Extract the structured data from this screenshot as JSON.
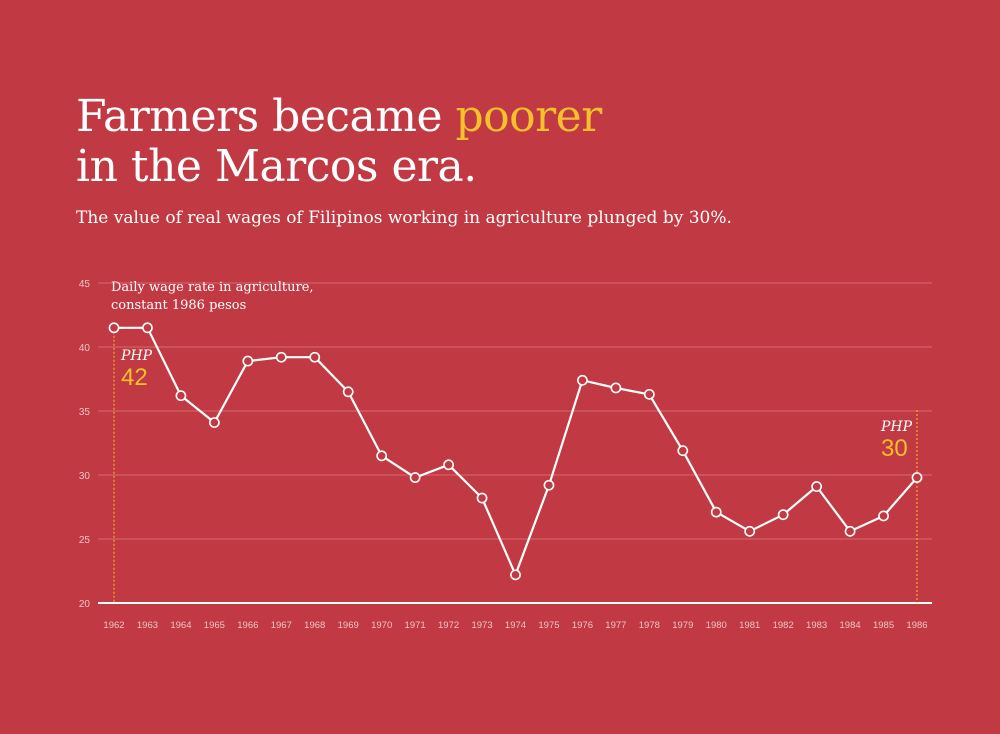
{
  "headline": {
    "line1_pre": "Farmers became ",
    "line1_highlight": "poorer",
    "line2": "in the Marcos era."
  },
  "subtitle": "The value of real wages of Filipinos working in agriculture plunged by 30%.",
  "colors": {
    "background": "#c13a43",
    "highlight": "#f5c02b",
    "line": "#ffffff",
    "grid": "#d66a71"
  },
  "chart_data": {
    "type": "line",
    "ylabel_line1": "Daily wage rate in agriculture,",
    "ylabel_line2": "constant 1986 pesos",
    "ylim": [
      20,
      45
    ],
    "yticks": [
      20,
      25,
      30,
      35,
      40,
      45
    ],
    "grid": true,
    "x": [
      "1962",
      "1963",
      "1964",
      "1965",
      "1966",
      "1967",
      "1968",
      "1969",
      "1970",
      "1971",
      "1972",
      "1973",
      "1974",
      "1975",
      "1976",
      "1977",
      "1978",
      "1979",
      "1980",
      "1981",
      "1982",
      "1983",
      "1984",
      "1985",
      "1986"
    ],
    "values": [
      41.5,
      41.5,
      36.2,
      34.1,
      38.9,
      39.2,
      39.2,
      36.5,
      31.5,
      29.8,
      30.8,
      28.2,
      22.2,
      29.2,
      37.4,
      36.8,
      36.3,
      31.9,
      27.1,
      25.6,
      26.9,
      29.1,
      25.6,
      26.8,
      29.8
    ],
    "annotations": [
      {
        "currency": "PHP",
        "value": "42",
        "year": "1962"
      },
      {
        "currency": "PHP",
        "value": "30",
        "year": "1986"
      }
    ]
  }
}
